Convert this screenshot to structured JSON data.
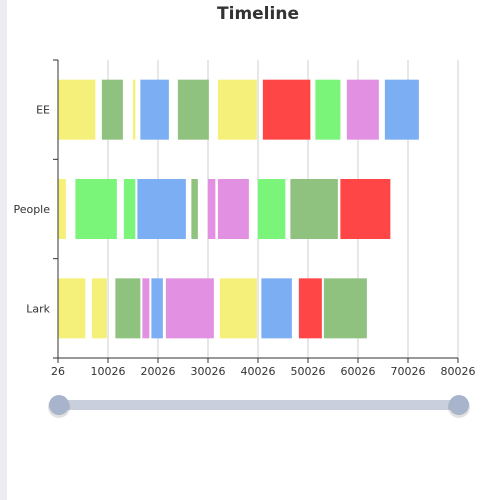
{
  "chart_data": {
    "type": "bar",
    "subtype": "timeline",
    "title": "Timeline",
    "categories": [
      "Lark",
      "People",
      "EE"
    ],
    "xlim": [
      26,
      80026
    ],
    "x_ticks": [
      26,
      10026,
      20026,
      30026,
      40026,
      50026,
      60026,
      70026,
      80026
    ],
    "grid": "vertical",
    "series": [
      {
        "category": "EE",
        "segments": [
          {
            "start": 26,
            "end": 7500,
            "color": "#f5f07a"
          },
          {
            "start": 8800,
            "end": 13000,
            "color": "#8fc17f"
          },
          {
            "start": 15000,
            "end": 15500,
            "color": "#f5f07a"
          },
          {
            "start": 16500,
            "end": 22200,
            "color": "#7baef3"
          },
          {
            "start": 24000,
            "end": 30200,
            "color": "#8fc17f"
          },
          {
            "start": 32000,
            "end": 39800,
            "color": "#f5f07a"
          },
          {
            "start": 41000,
            "end": 50500,
            "color": "#ff4646"
          },
          {
            "start": 51500,
            "end": 56500,
            "color": "#7af57a"
          },
          {
            "start": 57800,
            "end": 64200,
            "color": "#e290e2"
          },
          {
            "start": 65400,
            "end": 72200,
            "color": "#7baef3"
          }
        ]
      },
      {
        "category": "People",
        "segments": [
          {
            "start": 26,
            "end": 1600,
            "color": "#f5f07a"
          },
          {
            "start": 3500,
            "end": 11800,
            "color": "#7af57a"
          },
          {
            "start": 13200,
            "end": 15500,
            "color": "#7af57a"
          },
          {
            "start": 15900,
            "end": 25600,
            "color": "#7baef3"
          },
          {
            "start": 26700,
            "end": 28000,
            "color": "#8fc17f"
          },
          {
            "start": 30000,
            "end": 31500,
            "color": "#e290e2"
          },
          {
            "start": 32000,
            "end": 38200,
            "color": "#e290e2"
          },
          {
            "start": 40000,
            "end": 45500,
            "color": "#7af57a"
          },
          {
            "start": 46500,
            "end": 56000,
            "color": "#8fc17f"
          },
          {
            "start": 56500,
            "end": 66500,
            "color": "#ff4646"
          }
        ]
      },
      {
        "category": "Lark",
        "segments": [
          {
            "start": 26,
            "end": 5500,
            "color": "#f5f07a"
          },
          {
            "start": 6800,
            "end": 9800,
            "color": "#f5f07a"
          },
          {
            "start": 11500,
            "end": 16500,
            "color": "#8fc17f"
          },
          {
            "start": 16900,
            "end": 18300,
            "color": "#e290e2"
          },
          {
            "start": 18700,
            "end": 21000,
            "color": "#7baef3"
          },
          {
            "start": 21600,
            "end": 31200,
            "color": "#e290e2"
          },
          {
            "start": 32400,
            "end": 39800,
            "color": "#f5f07a"
          },
          {
            "start": 40700,
            "end": 46800,
            "color": "#7baef3"
          },
          {
            "start": 48200,
            "end": 52800,
            "color": "#ff4646"
          },
          {
            "start": 53200,
            "end": 61800,
            "color": "#8fc17f"
          }
        ]
      }
    ]
  },
  "data_zoom": {
    "range_start": 0,
    "range_end": 1
  }
}
